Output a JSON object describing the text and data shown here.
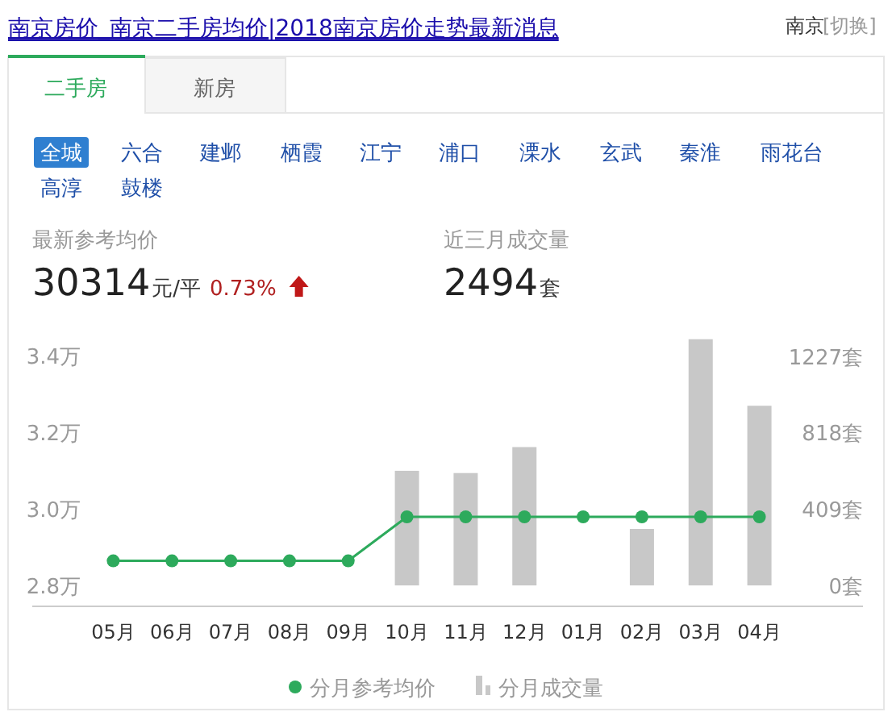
{
  "chart_data": [
    {
      "type": "other",
      "title": "南京房价_南京二手房均价|2018南京房价走势最新消息",
      "annotations": [
        "南京",
        "[切换]",
        "二手房",
        "新房",
        "全城",
        "六合",
        "建邺",
        "栖霞",
        "江宁",
        "浦口",
        "溧水",
        "玄武",
        "秦淮",
        "雨花台",
        "高淳",
        "鼓楼",
        "最新参考均价",
        "30314",
        "元/平",
        "0.73%",
        "近三月成交量",
        "2494",
        "套"
      ]
    },
    {
      "type": "bar",
      "categories": [
        "05月",
        "06月",
        "07月",
        "08月",
        "09月",
        "10月",
        "11月",
        "12月",
        "01月",
        "02月",
        "03月",
        "04月"
      ],
      "series": [
        {
          "name": "分月参考均价",
          "type": "line",
          "axis": "y",
          "color": "#2daa5c",
          "marker": "circle",
          "values": [
            2.864,
            2.864,
            2.864,
            2.864,
            2.864,
            2.979,
            2.979,
            2.979,
            2.979,
            2.979,
            2.979,
            2.979
          ]
        },
        {
          "name": "分月成交量",
          "type": "bar",
          "axis": "y2",
          "color": "#c8c8c8",
          "values": [
            0,
            0,
            0,
            0,
            0,
            613,
            601,
            740,
            0,
            302,
            1317,
            961
          ]
        }
      ],
      "ylim": [
        2.745,
        3.445
      ],
      "yticks": [
        {
          "value": 2.8,
          "label": "2.8万"
        },
        {
          "value": 3.0,
          "label": "3.0万"
        },
        {
          "value": 3.2,
          "label": "3.2万"
        },
        {
          "value": 3.4,
          "label": "3.4万"
        }
      ],
      "y2lim": [
        -112,
        1320
      ],
      "y2ticks": [
        {
          "value": 0,
          "label": "0套"
        },
        {
          "value": 409,
          "label": "409套"
        },
        {
          "value": 818,
          "label": "818套"
        },
        {
          "value": 1227,
          "label": "1227套"
        }
      ],
      "legend": "bottom",
      "grid": false
    }
  ]
}
